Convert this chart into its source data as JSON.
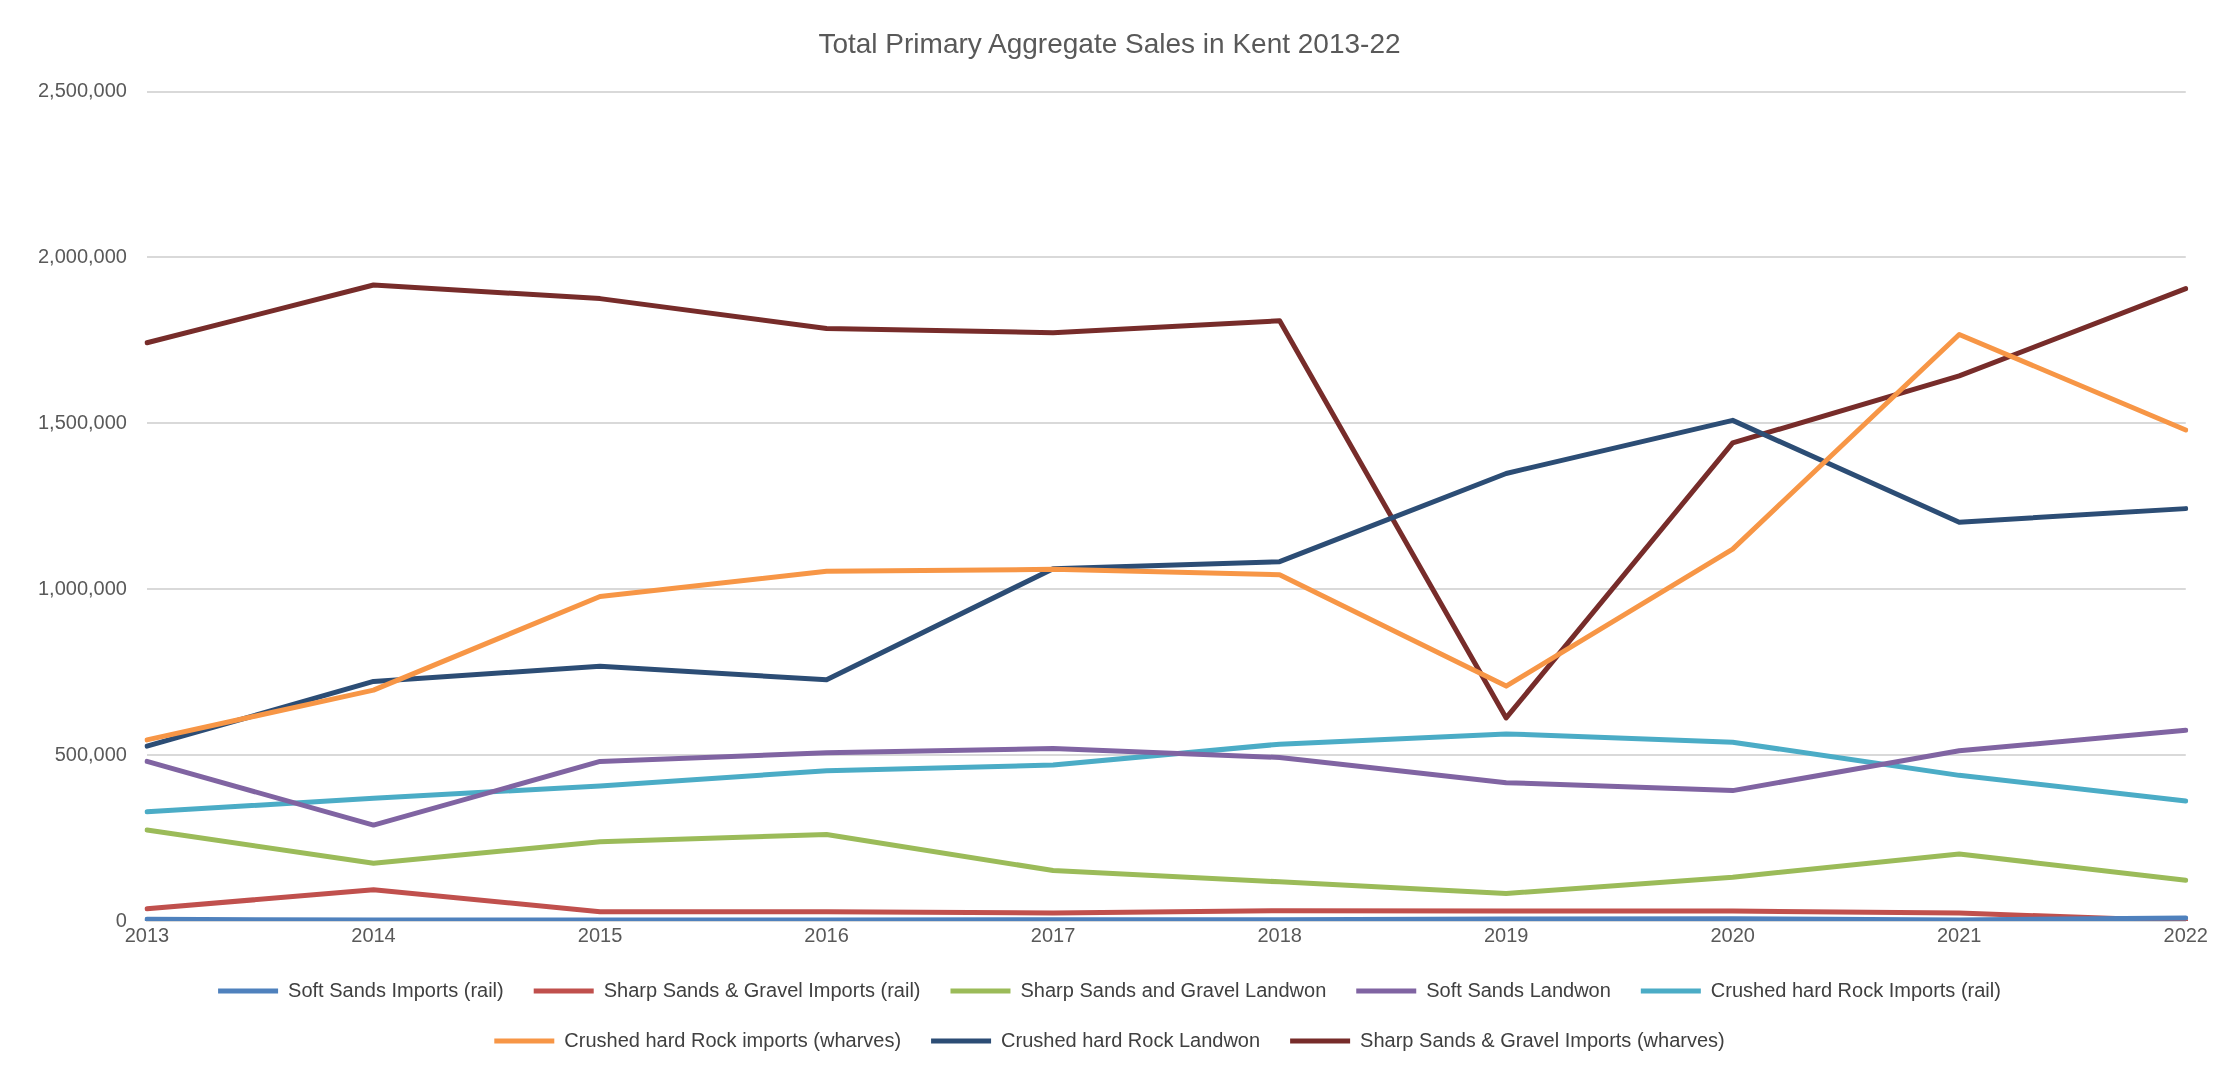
{
  "chart_data": {
    "type": "line",
    "title": "Total Primary Aggregate Sales in Kent 2013-22",
    "categories": [
      "2013",
      "2014",
      "2015",
      "2016",
      "2017",
      "2018",
      "2019",
      "2020",
      "2021",
      "2022"
    ],
    "series": [
      {
        "name": "Soft Sands Imports (rail)",
        "color": "#4f81bd",
        "values": [
          5000,
          3000,
          3000,
          3000,
          4000,
          4000,
          6000,
          7000,
          3000,
          9000
        ]
      },
      {
        "name": "Sharp Sands & Gravel Imports (rail)",
        "color": "#c0504d",
        "values": [
          37000,
          94000,
          28000,
          28000,
          24000,
          31000,
          30000,
          30000,
          24000,
          0
        ]
      },
      {
        "name": "Sharp Sands and Gravel Landwon",
        "color": "#9bbb59",
        "values": [
          274000,
          174000,
          239000,
          261000,
          152000,
          118000,
          83000,
          132000,
          202000,
          123000
        ]
      },
      {
        "name": "Soft Sands Landwon",
        "color": "#8064a2",
        "values": [
          481000,
          289000,
          481000,
          507000,
          520000,
          493000,
          417000,
          393000,
          513000,
          575000
        ]
      },
      {
        "name": "Crushed hard Rock Imports (rail)",
        "color": "#4bacc6",
        "values": [
          329000,
          370000,
          407000,
          453000,
          470000,
          533000,
          564000,
          539000,
          439000,
          362000
        ]
      },
      {
        "name": "Crushed hard Rock imports (wharves)",
        "color": "#f79646",
        "values": [
          546000,
          696000,
          978000,
          1054000,
          1060000,
          1044000,
          708000,
          1121000,
          1768000,
          1480000
        ]
      },
      {
        "name": "Crushed hard Rock Landwon",
        "color": "#2c4d75",
        "values": [
          527000,
          722000,
          768000,
          727000,
          1062000,
          1083000,
          1349000,
          1509000,
          1202000,
          1243000
        ]
      },
      {
        "name": "Sharp Sands & Gravel Imports (wharves)",
        "color": "#772c2a",
        "values": [
          1743000,
          1917000,
          1876000,
          1786000,
          1773000,
          1809000,
          612000,
          1441000,
          1643000,
          1906000
        ]
      }
    ],
    "ylim": [
      0,
      2500000
    ],
    "yticks": [
      {
        "value": 0,
        "label": "0"
      },
      {
        "value": 500000,
        "label": "500,000"
      },
      {
        "value": 1000000,
        "label": "1,000,000"
      },
      {
        "value": 1500000,
        "label": "1,500,000"
      },
      {
        "value": 2000000,
        "label": "2,000,000"
      },
      {
        "value": 2500000,
        "label": "2,500,000"
      }
    ],
    "grid": "y",
    "legend": "bottom",
    "marker": "none",
    "line_style": "solid"
  }
}
